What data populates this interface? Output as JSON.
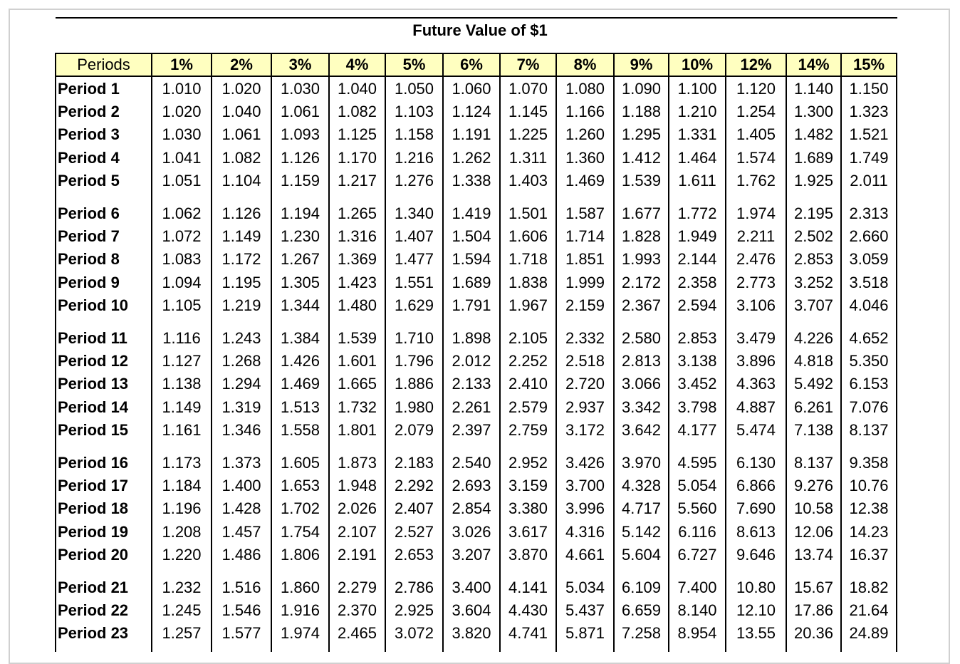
{
  "title": "Future Value of $1",
  "table": {
    "header": [
      "Periods",
      "1%",
      "2%",
      "3%",
      "4%",
      "5%",
      "6%",
      "7%",
      "8%",
      "9%",
      "10%",
      "12%",
      "14%",
      "15%"
    ],
    "rows": [
      [
        "Period 1",
        "1.010",
        "1.020",
        "1.030",
        "1.040",
        "1.050",
        "1.060",
        "1.070",
        "1.080",
        "1.090",
        "1.100",
        "1.120",
        "1.140",
        "1.150"
      ],
      [
        "Period 2",
        "1.020",
        "1.040",
        "1.061",
        "1.082",
        "1.103",
        "1.124",
        "1.145",
        "1.166",
        "1.188",
        "1.210",
        "1.254",
        "1.300",
        "1.323"
      ],
      [
        "Period 3",
        "1.030",
        "1.061",
        "1.093",
        "1.125",
        "1.158",
        "1.191",
        "1.225",
        "1.260",
        "1.295",
        "1.331",
        "1.405",
        "1.482",
        "1.521"
      ],
      [
        "Period 4",
        "1.041",
        "1.082",
        "1.126",
        "1.170",
        "1.216",
        "1.262",
        "1.311",
        "1.360",
        "1.412",
        "1.464",
        "1.574",
        "1.689",
        "1.749"
      ],
      [
        "Period 5",
        "1.051",
        "1.104",
        "1.159",
        "1.217",
        "1.276",
        "1.338",
        "1.403",
        "1.469",
        "1.539",
        "1.611",
        "1.762",
        "1.925",
        "2.011"
      ],
      [
        "Period 6",
        "1.062",
        "1.126",
        "1.194",
        "1.265",
        "1.340",
        "1.419",
        "1.501",
        "1.587",
        "1.677",
        "1.772",
        "1.974",
        "2.195",
        "2.313"
      ],
      [
        "Period 7",
        "1.072",
        "1.149",
        "1.230",
        "1.316",
        "1.407",
        "1.504",
        "1.606",
        "1.714",
        "1.828",
        "1.949",
        "2.211",
        "2.502",
        "2.660"
      ],
      [
        "Period 8",
        "1.083",
        "1.172",
        "1.267",
        "1.369",
        "1.477",
        "1.594",
        "1.718",
        "1.851",
        "1.993",
        "2.144",
        "2.476",
        "2.853",
        "3.059"
      ],
      [
        "Period 9",
        "1.094",
        "1.195",
        "1.305",
        "1.423",
        "1.551",
        "1.689",
        "1.838",
        "1.999",
        "2.172",
        "2.358",
        "2.773",
        "3.252",
        "3.518"
      ],
      [
        "Period 10",
        "1.105",
        "1.219",
        "1.344",
        "1.480",
        "1.629",
        "1.791",
        "1.967",
        "2.159",
        "2.367",
        "2.594",
        "3.106",
        "3.707",
        "4.046"
      ],
      [
        "Period 11",
        "1.116",
        "1.243",
        "1.384",
        "1.539",
        "1.710",
        "1.898",
        "2.105",
        "2.332",
        "2.580",
        "2.853",
        "3.479",
        "4.226",
        "4.652"
      ],
      [
        "Period 12",
        "1.127",
        "1.268",
        "1.426",
        "1.601",
        "1.796",
        "2.012",
        "2.252",
        "2.518",
        "2.813",
        "3.138",
        "3.896",
        "4.818",
        "5.350"
      ],
      [
        "Period 13",
        "1.138",
        "1.294",
        "1.469",
        "1.665",
        "1.886",
        "2.133",
        "2.410",
        "2.720",
        "3.066",
        "3.452",
        "4.363",
        "5.492",
        "6.153"
      ],
      [
        "Period 14",
        "1.149",
        "1.319",
        "1.513",
        "1.732",
        "1.980",
        "2.261",
        "2.579",
        "2.937",
        "3.342",
        "3.798",
        "4.887",
        "6.261",
        "7.076"
      ],
      [
        "Period 15",
        "1.161",
        "1.346",
        "1.558",
        "1.801",
        "2.079",
        "2.397",
        "2.759",
        "3.172",
        "3.642",
        "4.177",
        "5.474",
        "7.138",
        "8.137"
      ],
      [
        "Period 16",
        "1.173",
        "1.373",
        "1.605",
        "1.873",
        "2.183",
        "2.540",
        "2.952",
        "3.426",
        "3.970",
        "4.595",
        "6.130",
        "8.137",
        "9.358"
      ],
      [
        "Period 17",
        "1.184",
        "1.400",
        "1.653",
        "1.948",
        "2.292",
        "2.693",
        "3.159",
        "3.700",
        "4.328",
        "5.054",
        "6.866",
        "9.276",
        "10.76"
      ],
      [
        "Period 18",
        "1.196",
        "1.428",
        "1.702",
        "2.026",
        "2.407",
        "2.854",
        "3.380",
        "3.996",
        "4.717",
        "5.560",
        "7.690",
        "10.58",
        "12.38"
      ],
      [
        "Period 19",
        "1.208",
        "1.457",
        "1.754",
        "2.107",
        "2.527",
        "3.026",
        "3.617",
        "4.316",
        "5.142",
        "6.116",
        "8.613",
        "12.06",
        "14.23"
      ],
      [
        "Period 20",
        "1.220",
        "1.486",
        "1.806",
        "2.191",
        "2.653",
        "3.207",
        "3.870",
        "4.661",
        "5.604",
        "6.727",
        "9.646",
        "13.74",
        "16.37"
      ],
      [
        "Period 21",
        "1.232",
        "1.516",
        "1.860",
        "2.279",
        "2.786",
        "3.400",
        "4.141",
        "5.034",
        "6.109",
        "7.400",
        "10.80",
        "15.67",
        "18.82"
      ],
      [
        "Period 22",
        "1.245",
        "1.546",
        "1.916",
        "2.370",
        "2.925",
        "3.604",
        "4.430",
        "5.437",
        "6.659",
        "8.140",
        "12.10",
        "17.86",
        "21.64"
      ],
      [
        "Period 23",
        "1.257",
        "1.577",
        "1.974",
        "2.465",
        "3.072",
        "3.820",
        "4.741",
        "5.871",
        "7.258",
        "8.954",
        "13.55",
        "20.36",
        "24.89"
      ]
    ]
  }
}
